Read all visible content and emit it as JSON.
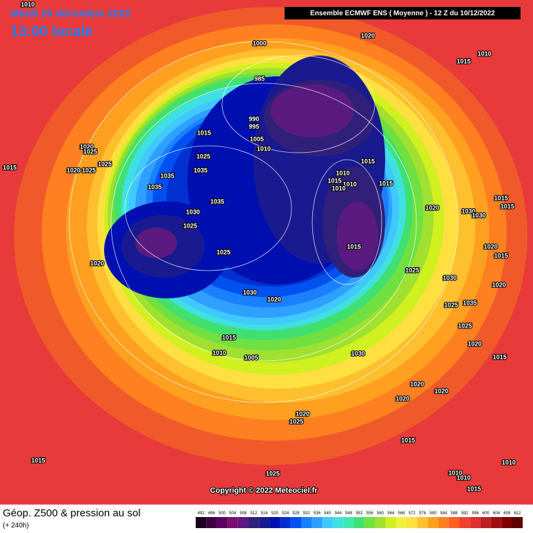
{
  "header": {
    "date": "Mardi 20 décembre 2022",
    "time": "13:00 locale",
    "model": "Ensemble ECMWF ENS  ( Moyenne )  -  12 Z du 10/12/2022"
  },
  "copyright": "Copyright © 2022 Meteociel.fr",
  "footer": {
    "title": "Géop. Z500 & pression au sol",
    "lead": "(+ 240h)"
  },
  "scale": {
    "values": [
      492,
      496,
      500,
      504,
      508,
      512,
      516,
      520,
      524,
      528,
      532,
      536,
      540,
      544,
      548,
      552,
      556,
      560,
      564,
      568,
      572,
      576,
      580,
      584,
      588,
      592,
      596,
      600,
      604,
      608,
      612
    ],
    "colors": [
      "#1a0020",
      "#3a0040",
      "#5a0060",
      "#78106e",
      "#5a1a80",
      "#30207a",
      "#1a1a90",
      "#0010b0",
      "#0030d0",
      "#0050f0",
      "#1a80ff",
      "#30a0ff",
      "#40c8ff",
      "#40e0e0",
      "#40e8b0",
      "#40e070",
      "#70e040",
      "#a0e030",
      "#d0f020",
      "#f0f040",
      "#ffe040",
      "#ffc030",
      "#ffa020",
      "#ff8020",
      "#ff6020",
      "#f04030",
      "#e03030",
      "#c02020",
      "#a01010",
      "#800000",
      "#600000"
    ]
  },
  "isobar_labels": [
    "1020",
    "1000",
    "1010",
    "1015",
    "985",
    "990",
    "995",
    "1015",
    "1005",
    "1010",
    "1020",
    "1025",
    "1025",
    "1015",
    "1025",
    "1035",
    "1035",
    "1020",
    "1025",
    "1010",
    "1015",
    "1010",
    "1015",
    "1010",
    "1015",
    "1035",
    "1035",
    "1020",
    "1030",
    "1030",
    "1015",
    "1015",
    "1030",
    "1025",
    "1015",
    "1025",
    "1020",
    "1020",
    "1015",
    "1030",
    "1020",
    "1025",
    "1030",
    "1020",
    "1025",
    "1035",
    "1025",
    "1015",
    "1020",
    "1010",
    "1005",
    "1030",
    "1015",
    "1020",
    "1020",
    "1020",
    "1020",
    "1025",
    "1015",
    "1015",
    "1010",
    "1025",
    "1010",
    "1010",
    "1015",
    "1010"
  ]
}
